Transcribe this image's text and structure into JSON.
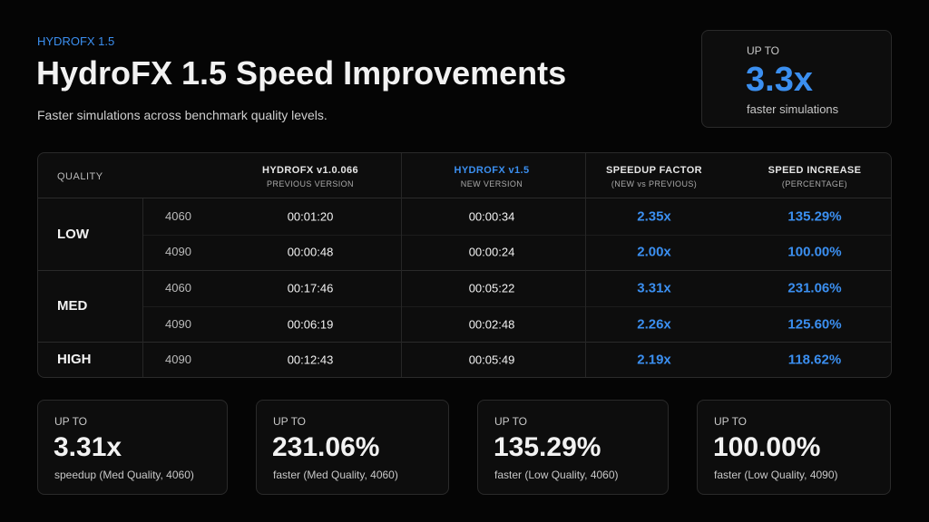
{
  "header": {
    "eyebrow": "HYDROFX 1.5",
    "title": "HydroFX 1.5 Speed Improvements",
    "subtitle": "Faster simulations across benchmark quality levels."
  },
  "hero": {
    "label": "UP TO",
    "value": "3.3x",
    "caption": "faster simulations"
  },
  "table": {
    "columns": [
      {
        "title": "QUALITY"
      },
      {
        "title": "HYDROFX v1.0.066",
        "sub": "PREVIOUS VERSION"
      },
      {
        "title": "HYDROFX v1.5",
        "sub": "NEW VERSION"
      },
      {
        "title": "SPEEDUP FACTOR",
        "sub": "(NEW vs PREVIOUS)"
      },
      {
        "title": "SPEED INCREASE",
        "sub": "(PERCENTAGE)"
      }
    ],
    "groups": [
      {
        "quality": "LOW",
        "rows": [
          [
            "4060",
            "00:01:20",
            "00:00:34",
            "2.35x",
            "135.29%"
          ],
          [
            "4090",
            "00:00:48",
            "00:00:24",
            "2.00x",
            "100.00%"
          ]
        ]
      },
      {
        "quality": "MED",
        "rows": [
          [
            "4060",
            "00:17:46",
            "00:05:22",
            "3.31x",
            "231.06%"
          ],
          [
            "4090",
            "00:06:19",
            "00:02:48",
            "2.26x",
            "125.60%"
          ]
        ]
      },
      {
        "quality": "HIGH",
        "rows": [
          [
            "4090",
            "00:12:43",
            "00:05:49",
            "2.19x",
            "118.62%"
          ]
        ]
      }
    ]
  },
  "cards": [
    {
      "label": "UP TO",
      "value": "3.31x",
      "caption": "speedup (Med Quality, 4060)"
    },
    {
      "label": "UP TO",
      "value": "231.06%",
      "caption": "faster (Med Quality, 4060)"
    },
    {
      "label": "UP TO",
      "value": "135.29%",
      "caption": "faster (Low Quality, 4060)"
    },
    {
      "label": "UP TO",
      "value": "100.00%",
      "caption": "faster (Low Quality, 4090)"
    }
  ]
}
